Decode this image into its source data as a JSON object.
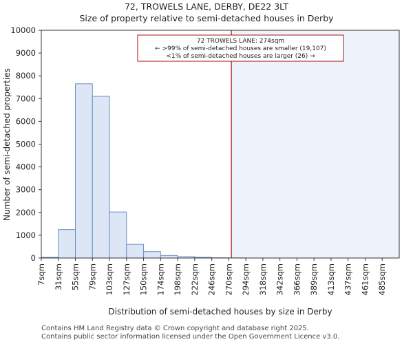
{
  "header": {
    "title": "72, TROWELS LANE, DERBY, DE22 3LT",
    "subtitle": "Size of property relative to semi-detached houses in Derby"
  },
  "chart_data": {
    "type": "bar",
    "title": "72, TROWELS LANE, DERBY, DE22 3LT",
    "subtitle": "Size of property relative to semi-detached houses in Derby",
    "xlabel": "Distribution of semi-detached houses by size in Derby",
    "ylabel": "Number of semi-detached properties",
    "categories": [
      "7sqm",
      "31sqm",
      "55sqm",
      "79sqm",
      "103sqm",
      "127sqm",
      "150sqm",
      "174sqm",
      "198sqm",
      "222sqm",
      "246sqm",
      "270sqm",
      "294sqm",
      "318sqm",
      "342sqm",
      "366sqm",
      "389sqm",
      "413sqm",
      "437sqm",
      "461sqm",
      "485sqm"
    ],
    "values": [
      30,
      1250,
      7650,
      7100,
      2020,
      600,
      280,
      110,
      60,
      30,
      10,
      5,
      0,
      0,
      0,
      0,
      0,
      0,
      0,
      0,
      0
    ],
    "ylim": [
      0,
      10000
    ],
    "yticks": [
      0,
      1000,
      2000,
      3000,
      4000,
      5000,
      6000,
      7000,
      8000,
      9000,
      10000
    ],
    "grid": false,
    "marker": {
      "value_index": 11.15,
      "label_line1": "72 TROWELS LANE: 274sqm",
      "label_line2": "← >99% of semi-detached houses are smaller (19,107)",
      "label_line3": "<1% of semi-detached houses are larger (26) →"
    },
    "colors": {
      "bar_fill": "#dce6f4",
      "bar_stroke": "#6b8fc7",
      "highlight_region": "#eef2fb",
      "marker_line": "#aa1111",
      "annotation_border": "#aa1111"
    }
  },
  "footer": {
    "line1": "Contains HM Land Registry data © Crown copyright and database right 2025.",
    "line2": "Contains public sector information licensed under the Open Government Licence v3.0."
  }
}
